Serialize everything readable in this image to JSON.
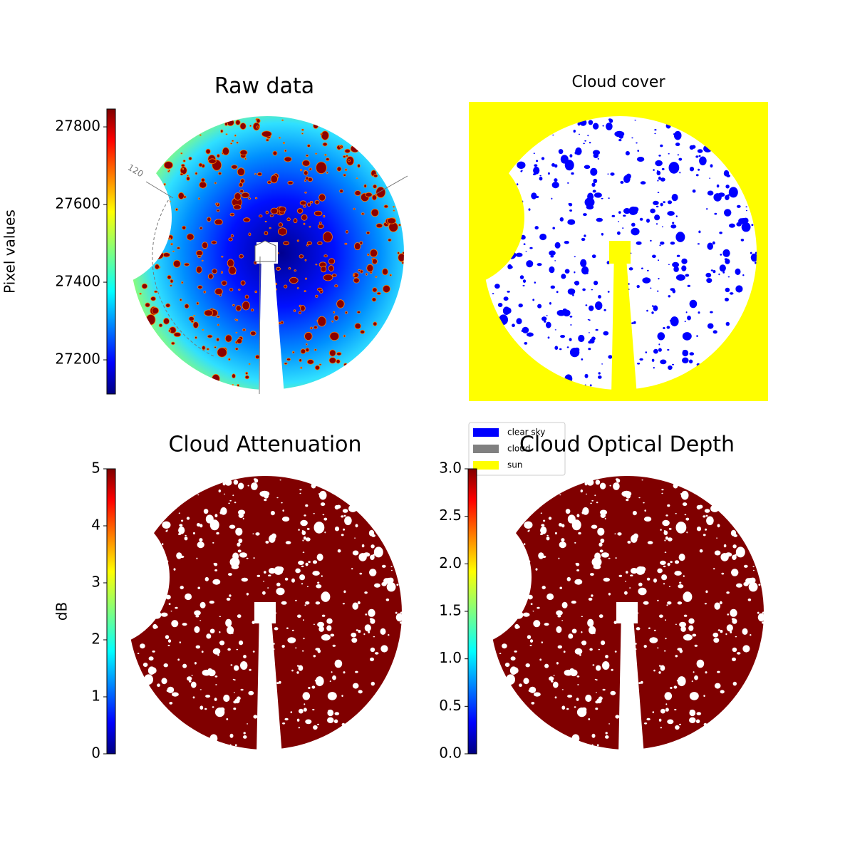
{
  "chart_data": [
    {
      "type": "image",
      "title": "Raw data",
      "colorbar_label": "Pixel values",
      "colormap": "jet",
      "ylim": [
        27112,
        27846
      ],
      "yticks": [
        27200,
        27400,
        27600,
        27800
      ],
      "annotations": [
        "120"
      ]
    },
    {
      "type": "image",
      "title": "Cloud cover",
      "series": [
        {
          "name": "clear sky",
          "color": "#0000ff"
        },
        {
          "name": "cloud",
          "color": "#808080"
        },
        {
          "name": "sun",
          "color": "#ffff00"
        }
      ]
    },
    {
      "type": "image",
      "title": "Cloud Attenuation",
      "colorbar_label": "dB",
      "colormap": "jet",
      "ylim": [
        0,
        5
      ],
      "yticks": [
        0,
        1,
        2,
        3,
        4,
        5
      ]
    },
    {
      "type": "image",
      "title": "Cloud Optical Depth",
      "colormap": "jet",
      "ylim": [
        0,
        3
      ],
      "yticks": [
        {
          "value": 0,
          "label": "0.0"
        },
        0.5,
        {
          "value": 1,
          "label": "1.0"
        },
        1.5,
        {
          "value": 2,
          "label": "2.0"
        },
        2.5,
        {
          "value": 3,
          "label": "3.0"
        }
      ]
    }
  ]
}
